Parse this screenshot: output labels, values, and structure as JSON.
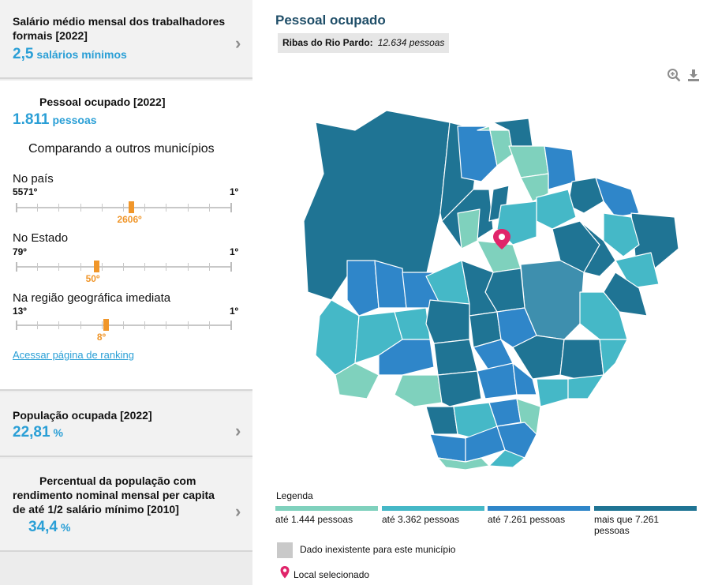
{
  "cards": {
    "salario": {
      "title": "Salário médio mensal dos trabalhadores formais [2022]",
      "value": "2,5",
      "unit": "salários mínimos"
    },
    "pessoal": {
      "title": "Pessoal ocupado [2022]",
      "value": "1.811",
      "unit": "pessoas",
      "compare_title": "Comparando a outros municípios",
      "rankings": [
        {
          "label": "No país",
          "min": "5571º",
          "max": "1º",
          "value": "2606º",
          "fraction": 0.532
        },
        {
          "label": "No Estado",
          "min": "79º",
          "max": "1º",
          "value": "50º",
          "fraction": 0.372
        },
        {
          "label": "Na região geográfica imediata",
          "min": "13º",
          "max": "1º",
          "value": "8º",
          "fraction": 0.417
        }
      ],
      "ranking_link": "Acessar página de ranking"
    },
    "populacao": {
      "title": "População ocupada [2022]",
      "value": "22,81",
      "unit": "%"
    },
    "percentual": {
      "title": "Percentual da população com rendimento nominal mensal per capita de até 1/2 salário mínimo [2010]",
      "value": "34,4",
      "unit": "%"
    }
  },
  "map_panel": {
    "title": "Pessoal ocupado",
    "selected_name": "Ribas do Rio Pardo:",
    "selected_value": "12.634 pessoas",
    "tools": [
      "zoom-in-icon",
      "download-icon"
    ],
    "legend": {
      "title": "Legenda",
      "items": [
        {
          "label": "até 1.444 pessoas",
          "color": "#7fd1bd"
        },
        {
          "label": "até 3.362 pessoas",
          "color": "#45b8c7"
        },
        {
          "label": "até 7.261 pessoas",
          "color": "#2f86c9"
        },
        {
          "label": "mais que 7.261 pessoas",
          "color": "#1f7494"
        }
      ],
      "no_data": "Dado inexistente para este município",
      "selected": "Local selecionado"
    }
  }
}
